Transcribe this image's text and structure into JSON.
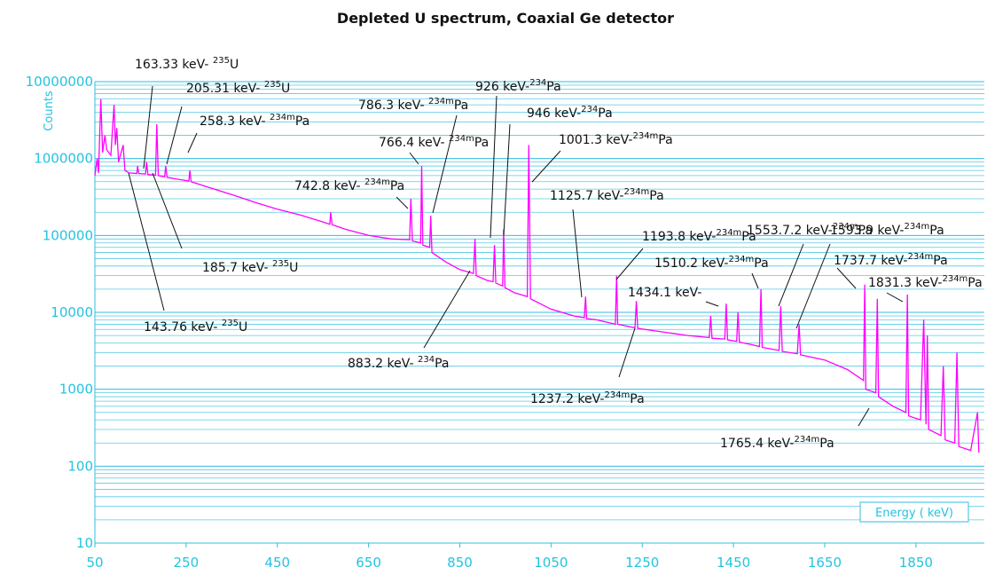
{
  "chart_data": {
    "type": "line",
    "title": "Depleted U spectrum, Coaxial Ge detector",
    "x_label": "Energy ( keV)",
    "y_label": "Counts",
    "color": "#ff00ff",
    "y_log": true,
    "grid": true,
    "minor_grid": true,
    "xlim": [
      50,
      2000
    ],
    "xticks": [
      50,
      250,
      450,
      650,
      850,
      1050,
      1250,
      1450,
      1650,
      1850
    ],
    "ylim": [
      10,
      10000000
    ],
    "yticks": [
      10,
      100,
      1000,
      10000,
      100000,
      1000000,
      10000000
    ],
    "x": [
      50,
      55,
      58,
      63,
      67,
      72,
      76,
      85,
      92,
      95,
      98,
      102,
      112,
      116,
      125,
      142,
      143.76,
      146,
      161,
      163.33,
      166,
      183,
      185.7,
      189,
      203,
      205.31,
      208,
      230,
      256,
      258.3,
      261,
      300,
      350,
      400,
      450,
      500,
      550,
      565,
      567,
      570,
      600,
      650,
      700,
      740,
      742.8,
      746,
      764,
      766.4,
      769,
      784,
      786.3,
      789,
      820,
      850,
      880,
      883.2,
      886,
      910,
      923,
      926,
      929,
      944,
      946,
      949,
      970,
      998,
      1001.3,
      1005,
      1050,
      1100,
      1123,
      1125.7,
      1128,
      1150,
      1191,
      1193.8,
      1196,
      1234,
      1237.2,
      1240,
      1300,
      1350,
      1397,
      1400,
      1403,
      1431,
      1434.1,
      1437,
      1457,
      1460,
      1463,
      1490,
      1507,
      1510.2,
      1513,
      1550,
      1553.7,
      1557,
      1590,
      1593.9,
      1597,
      1650,
      1700,
      1735,
      1737.7,
      1740,
      1762,
      1765.4,
      1768,
      1800,
      1828,
      1831.3,
      1834,
      1860,
      1867,
      1872,
      1875,
      1878,
      1905,
      1910,
      1914,
      1935,
      1940,
      1944,
      1970,
      1985,
      1988
    ],
    "values": [
      600000,
      1000000,
      650000,
      5900000,
      1200000,
      2000000,
      1300000,
      1100000,
      5000000,
      1500000,
      2500000,
      900000,
      1500000,
      700000,
      650000,
      640000,
      800000,
      640000,
      630000,
      900000,
      620000,
      610000,
      2800000,
      600000,
      580000,
      800000,
      570000,
      540000,
      510000,
      700000,
      500000,
      420000,
      340000,
      270000,
      220000,
      185000,
      150000,
      140000,
      200000,
      138000,
      120000,
      100000,
      90000,
      88000,
      300000,
      85000,
      80000,
      800000,
      75000,
      70000,
      180000,
      60000,
      45000,
      36000,
      32000,
      90000,
      30000,
      26000,
      25000,
      75000,
      24000,
      22000,
      120000,
      21000,
      18000,
      16000,
      1500000,
      15000,
      11000,
      9000,
      8500,
      16000,
      8300,
      8000,
      7000,
      30000,
      7000,
      6300,
      14000,
      6200,
      5500,
      5000,
      4700,
      9000,
      4600,
      4500,
      13000,
      4400,
      4200,
      10000,
      4100,
      3800,
      3600,
      20000,
      3500,
      3200,
      12000,
      3100,
      2900,
      7000,
      2800,
      2400,
      1800,
      1300,
      23000,
      1000,
      900,
      15000,
      800,
      600,
      500,
      17000,
      450,
      400,
      8000,
      350,
      5000,
      300,
      250,
      2000,
      220,
      200,
      3000,
      180,
      160,
      500,
      150
    ],
    "annotations": [
      {
        "energy": "163.33 keV- ",
        "mass": "235",
        "element": "U"
      },
      {
        "energy": "205.31 keV- ",
        "mass": "235",
        "element": "U"
      },
      {
        "energy": "258.3 keV- ",
        "mass": "234m",
        "element": "Pa"
      },
      {
        "energy": "185.7 keV- ",
        "mass": "235",
        "element": "U"
      },
      {
        "energy": "143.76 keV- ",
        "mass": "235",
        "element": "U"
      },
      {
        "energy": "786.3 keV- ",
        "mass": "234m",
        "element": "Pa"
      },
      {
        "energy": "766.4 keV- ",
        "mass": "234m",
        "element": "Pa"
      },
      {
        "energy": "742.8 keV- ",
        "mass": "234m",
        "element": "Pa"
      },
      {
        "energy": "926 keV-",
        "mass": "234",
        "element": "Pa"
      },
      {
        "energy": "946 keV-",
        "mass": "234",
        "element": "Pa"
      },
      {
        "energy": "1001.3 keV-",
        "mass": "234m",
        "element": "Pa"
      },
      {
        "energy": "883.2 keV- ",
        "mass": "234",
        "element": "Pa"
      },
      {
        "energy": "1125.7 keV-",
        "mass": "234m",
        "element": "Pa"
      },
      {
        "energy": "1193.8 keV-",
        "mass": "234m",
        "element": "Pa"
      },
      {
        "energy": "1237.2 keV-",
        "mass": "234m",
        "element": "Pa"
      },
      {
        "energy": "1434.1 keV-"
      },
      {
        "energy": "1510.2 keV-",
        "mass": "234m",
        "element": "Pa"
      },
      {
        "energy": "1553.7.2 keV-",
        "mass": "234m",
        "element": "Pa"
      },
      {
        "energy": "1593.9 keV-",
        "mass": "234m",
        "element": "Pa"
      },
      {
        "energy": "1737.7 keV-",
        "mass": "234m",
        "element": "Pa"
      },
      {
        "energy": "1831.3 keV-",
        "mass": "234m",
        "element": "Pa"
      },
      {
        "energy": "1765.4 keV-",
        "mass": "234m",
        "element": "Pa"
      }
    ]
  }
}
